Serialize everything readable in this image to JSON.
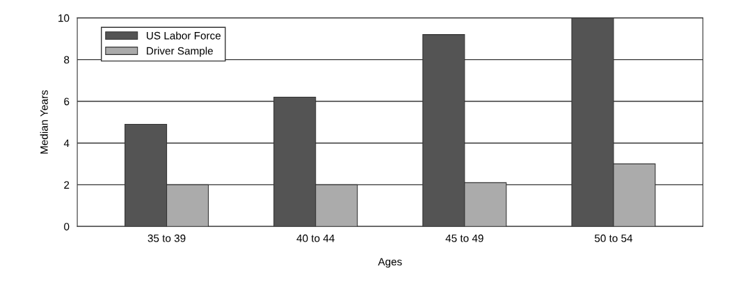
{
  "chart_data": {
    "type": "bar",
    "xlabel": "Ages",
    "ylabel": "Median Years",
    "categories": [
      "35 to 39",
      "40 to 44",
      "45 to 49",
      "50 to 54"
    ],
    "series": [
      {
        "name": "US Labor Force",
        "color": "#545454",
        "values": [
          4.9,
          6.2,
          9.2,
          10
        ]
      },
      {
        "name": "Driver Sample",
        "color": "#ababab",
        "values": [
          2.0,
          2.0,
          2.1,
          3.0
        ]
      }
    ],
    "ylim": [
      0,
      10
    ],
    "yticks": [
      0,
      2,
      4,
      6,
      8,
      10
    ],
    "grid": "y",
    "legend": "top left"
  }
}
